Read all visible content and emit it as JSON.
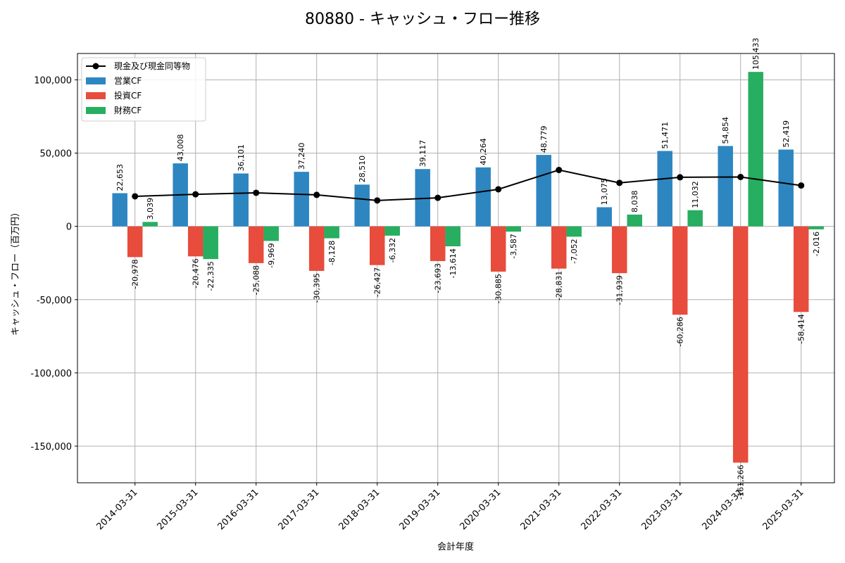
{
  "chart_data": {
    "type": "bar",
    "title": "80880 - キャッシュ・フロー推移",
    "xlabel": "会計年度",
    "ylabel": "キャッシュ・フロー（百万円）",
    "ylim": [
      -175000,
      118000
    ],
    "yticks": [
      100000,
      50000,
      0,
      -50000,
      -100000,
      -150000
    ],
    "ytick_labels": [
      "100,000",
      "50,000",
      "0",
      "-50,000",
      "-100,000",
      "-150,000"
    ],
    "grid": true,
    "legend_position": "top-left",
    "categories": [
      "2014-03-31",
      "2015-03-31",
      "2016-03-31",
      "2017-03-31",
      "2018-03-31",
      "2019-03-31",
      "2020-03-31",
      "2021-03-31",
      "2022-03-31",
      "2023-03-31",
      "2024-03-31",
      "2025-03-31"
    ],
    "series": [
      {
        "name": "営業CF",
        "kind": "bar",
        "color": "#2e86c1",
        "values": [
          22653,
          43008,
          36101,
          37240,
          28510,
          39117,
          40264,
          48779,
          13075,
          51471,
          54854,
          52419
        ],
        "labels": [
          "22,653",
          "43,008",
          "36,101",
          "37,240",
          "28,510",
          "39,117",
          "40,264",
          "48,779",
          "13,075",
          "51,471",
          "54,854",
          "52,419"
        ]
      },
      {
        "name": "投資CF",
        "kind": "bar",
        "color": "#e74c3c",
        "values": [
          -20978,
          -20476,
          -25088,
          -30395,
          -26427,
          -23693,
          -30885,
          -28831,
          -31939,
          -60286,
          -161266,
          -58414
        ],
        "labels": [
          "-20,978",
          "-20,476",
          "-25,088",
          "-30,395",
          "-26,427",
          "-23,693",
          "-30,885",
          "-28,831",
          "-31,939",
          "-60,286",
          "-161,266",
          "-58,414"
        ]
      },
      {
        "name": "財務CF",
        "kind": "bar",
        "color": "#27ae60",
        "values": [
          3039,
          -22335,
          -9969,
          -8128,
          -6332,
          -13614,
          -3587,
          -7052,
          8038,
          11032,
          105433,
          -2016
        ],
        "labels": [
          "3,039",
          "-22,335",
          "-9,969",
          "-8,128",
          "-6,332",
          "-13,614",
          "-3,587",
          "-7,052",
          "8,038",
          "11,032",
          "105,433",
          "-2,016"
        ]
      },
      {
        "name": "現金及び現金同等物",
        "kind": "line",
        "color": "#000000",
        "values": [
          20500,
          21900,
          22900,
          21500,
          17700,
          19500,
          25300,
          38500,
          29700,
          33500,
          33700,
          27900
        ]
      }
    ]
  }
}
